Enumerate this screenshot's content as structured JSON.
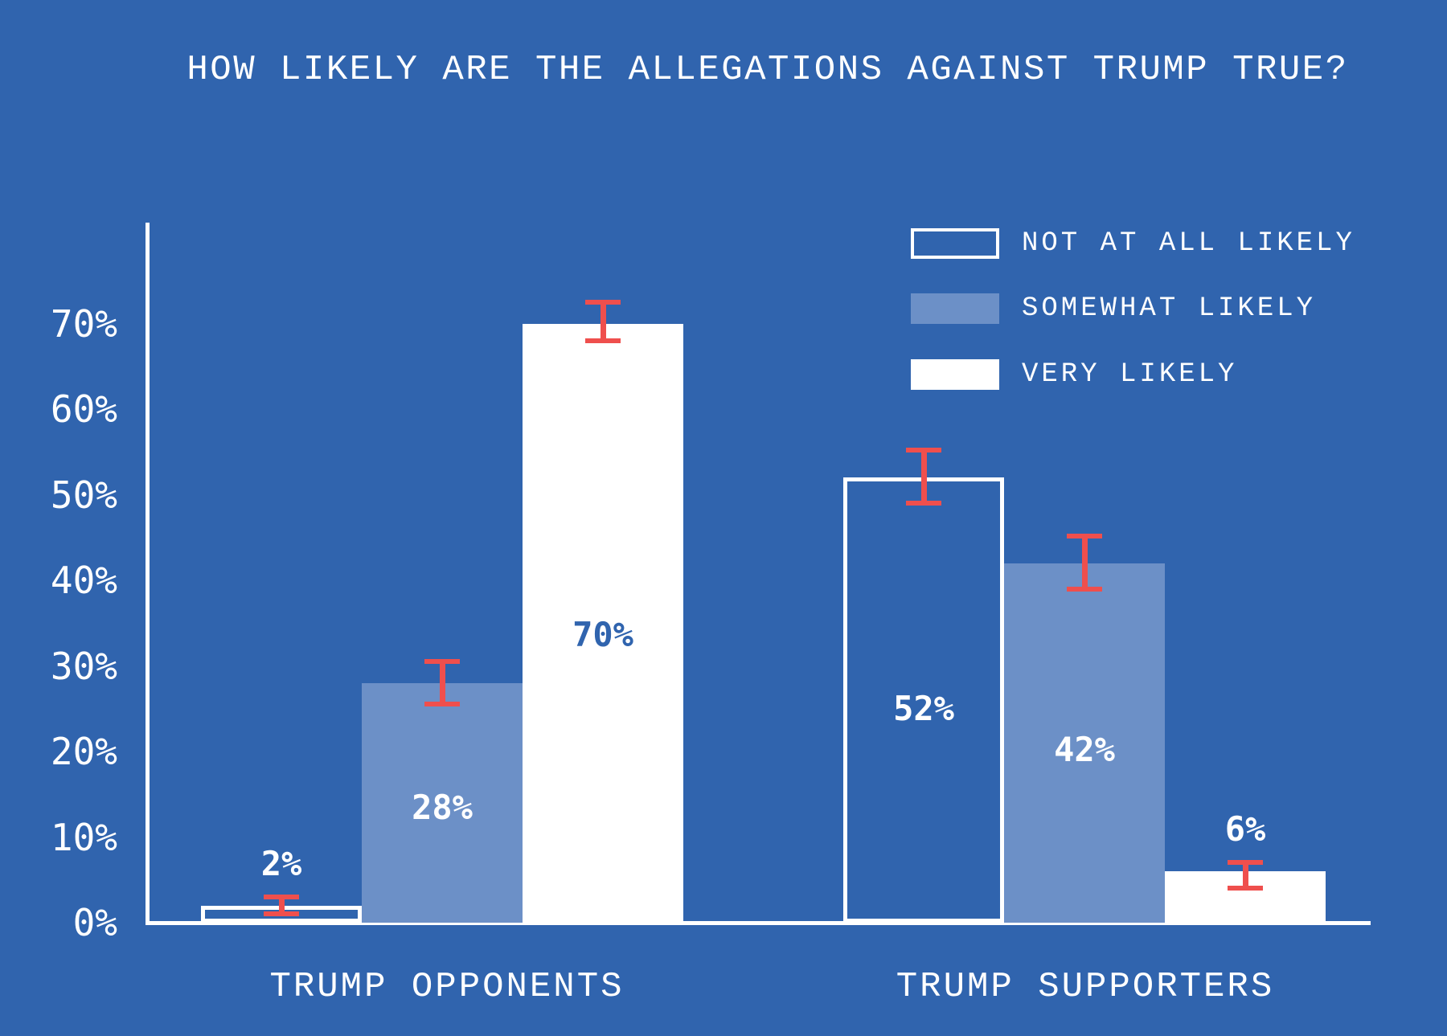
{
  "title": "HOW LIKELY ARE THE ALLEGATIONS AGAINST TRUMP TRUE?",
  "legend": [
    {
      "label": "NOT AT ALL LIKELY",
      "swatch": "outline"
    },
    {
      "label": "SOMEWHAT LIKELY",
      "swatch": "light-blue"
    },
    {
      "label": "VERY LIKELY",
      "swatch": "white"
    }
  ],
  "colors": {
    "background": "#3064AE",
    "light_blue": "#6C90C7",
    "bar_white": "#FFFFFF",
    "error_red": "#EF4F4D",
    "text_white": "#FFFFFF",
    "value_label_on_white_bar": "#3064AE"
  },
  "y_axis": {
    "tick_labels": [
      "0%",
      "10%",
      "20%",
      "30%",
      "40%",
      "50%",
      "60%",
      "70%"
    ]
  },
  "chart_data": {
    "type": "bar",
    "title": "HOW LIKELY ARE THE ALLEGATIONS AGAINST TRUMP TRUE?",
    "categories": [
      "TRUMP OPPONENTS",
      "TRUMP SUPPORTERS"
    ],
    "series": [
      {
        "name": "NOT AT ALL LIKELY",
        "style": "outline",
        "values": [
          2,
          52
        ],
        "value_labels": [
          "2%",
          "52%"
        ],
        "error_plus": [
          1,
          3.2
        ],
        "error_minus": [
          1,
          3
        ]
      },
      {
        "name": "SOMEWHAT LIKELY",
        "style": "light-blue",
        "values": [
          28,
          42
        ],
        "value_labels": [
          "28%",
          "42%"
        ],
        "error_plus": [
          2.5,
          3.2
        ],
        "error_minus": [
          2.5,
          3
        ]
      },
      {
        "name": "VERY LIKELY",
        "style": "white",
        "values": [
          70,
          6
        ],
        "value_labels": [
          "70%",
          "6%"
        ],
        "error_plus": [
          2.5,
          1
        ],
        "error_minus": [
          2,
          2
        ]
      }
    ],
    "y_ticks_percent": [
      0,
      10,
      20,
      30,
      40,
      50,
      60,
      70
    ],
    "ylim": [
      0,
      75
    ],
    "grid": false,
    "error_bars": true,
    "legend_position": "top-right"
  }
}
